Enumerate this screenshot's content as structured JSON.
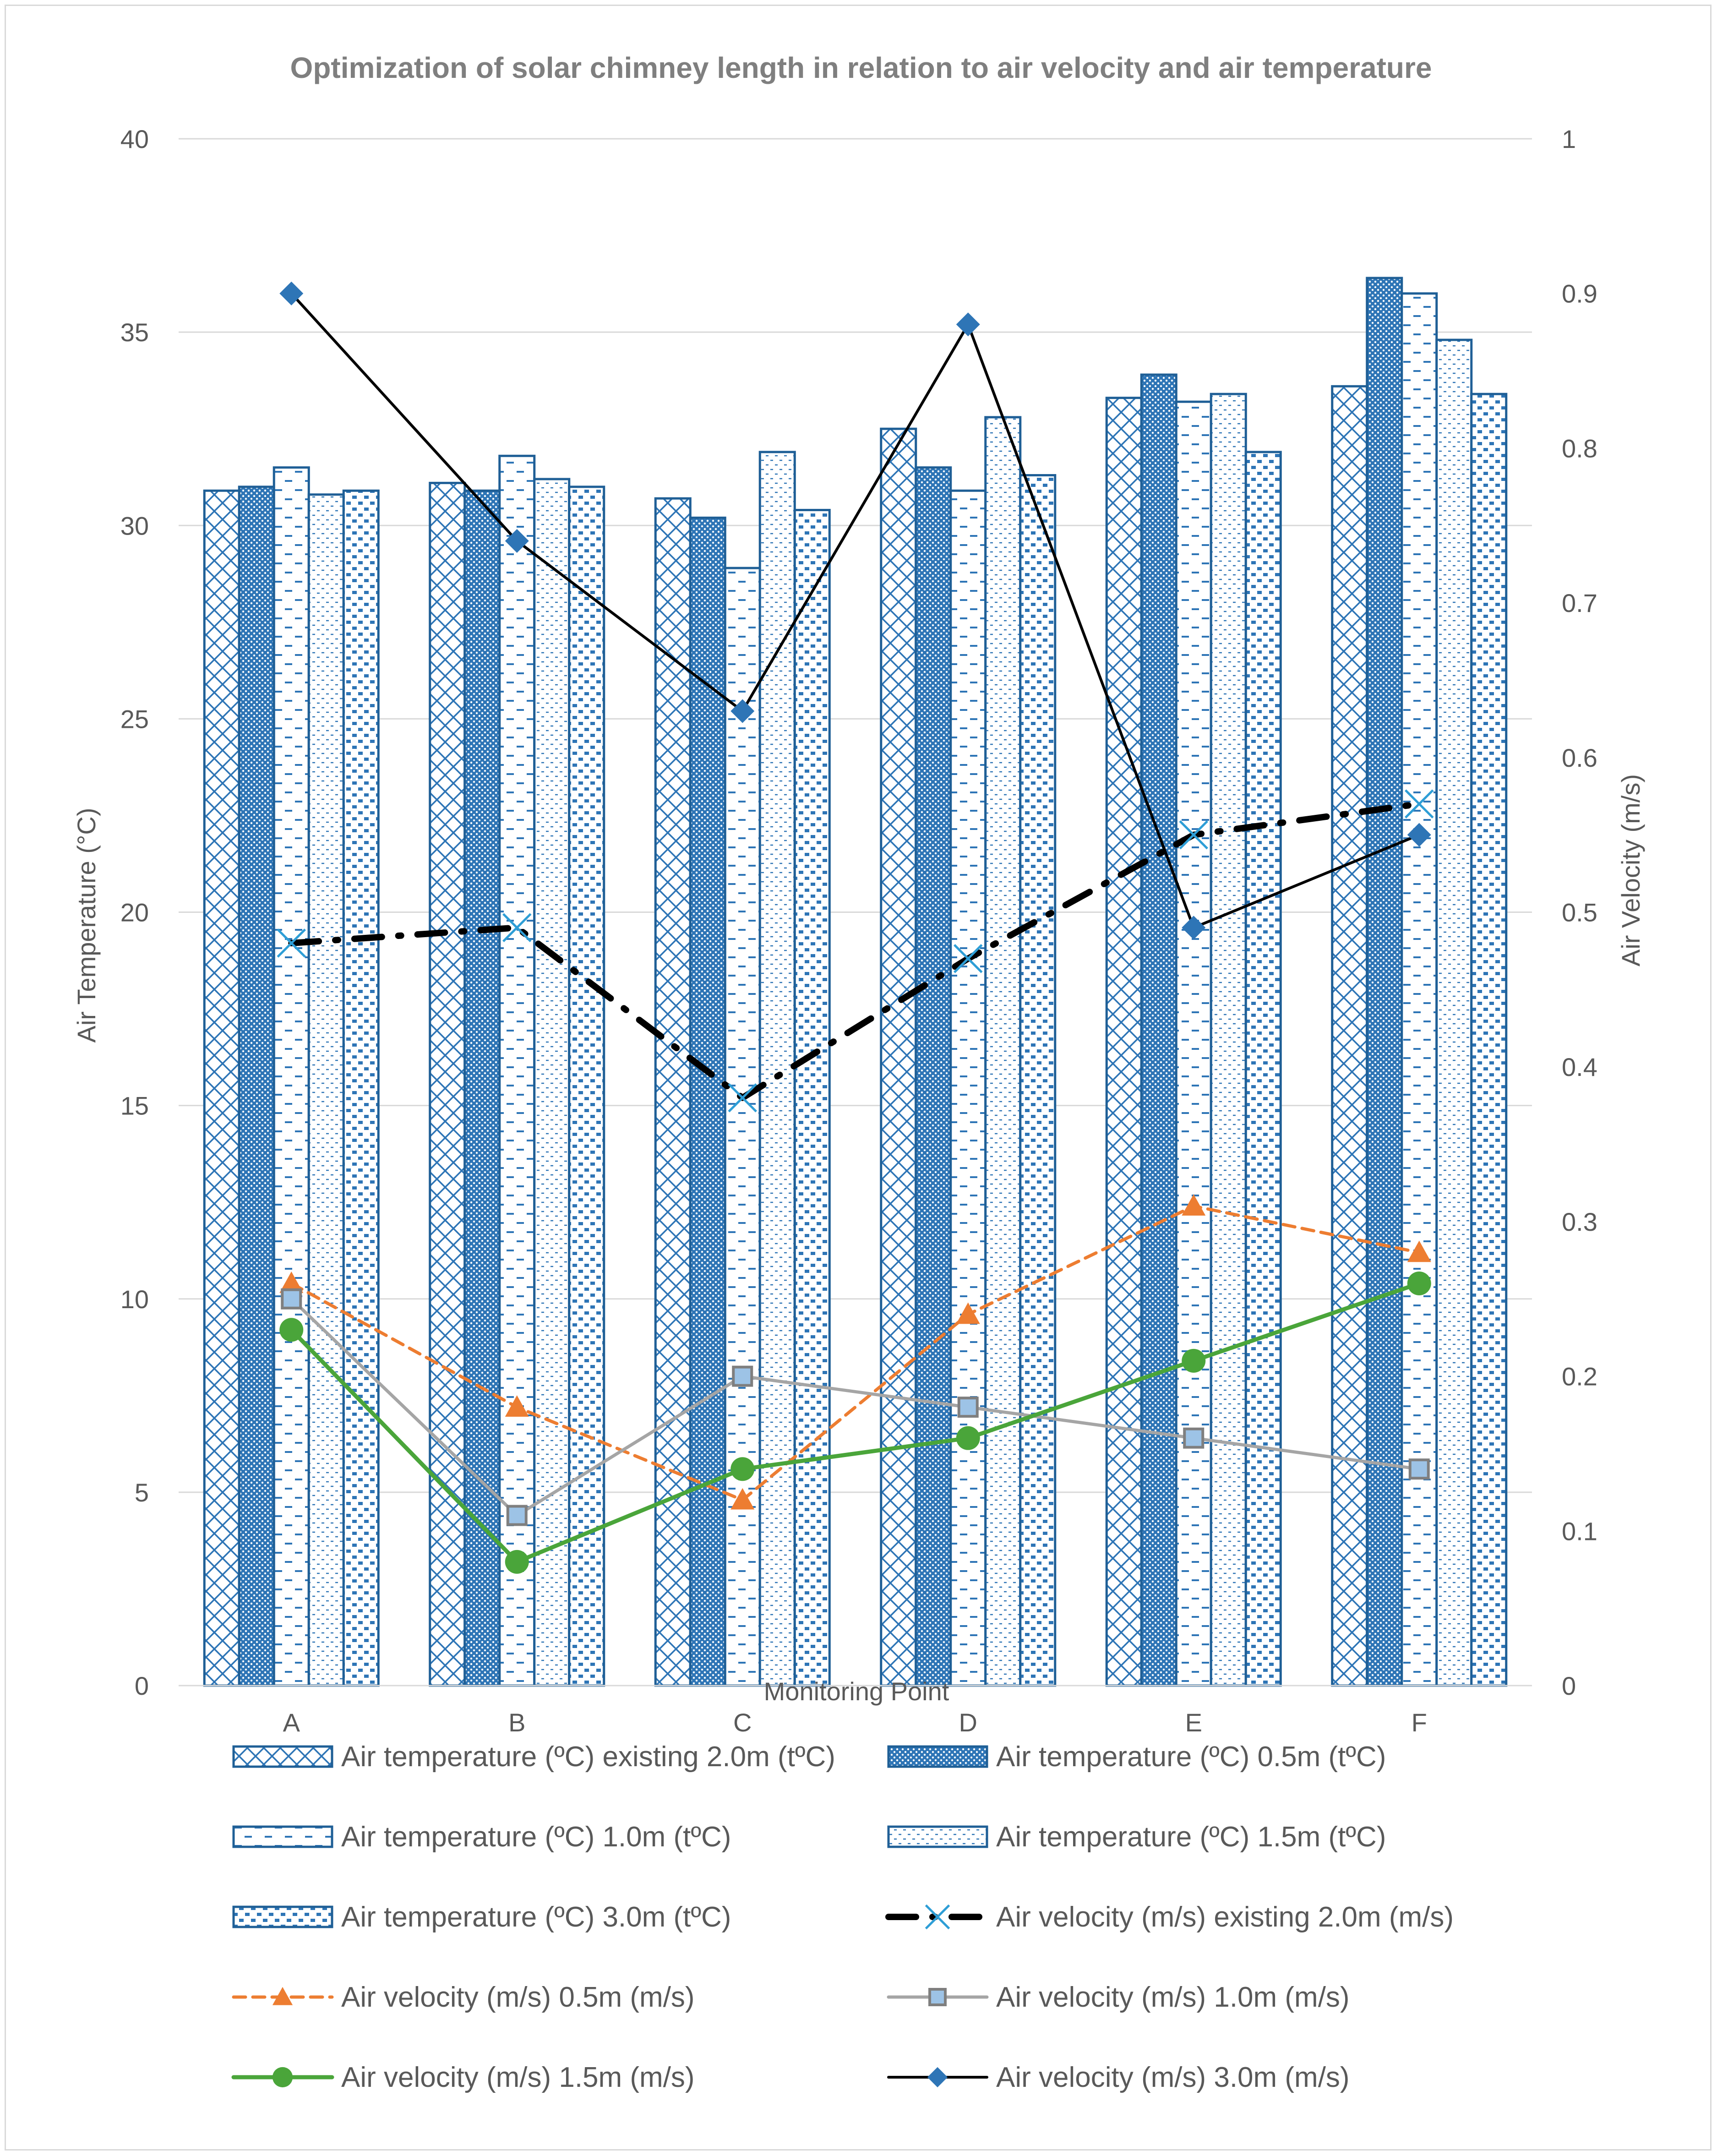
{
  "chart_data": {
    "type": "bar+line",
    "title": "Optimization of solar chimney length in relation to air velocity and air temperature",
    "xlabel": "Monitoring Point",
    "ylabel": "Air Temperature (°C)",
    "y2label": "Air Velocity (m/s)",
    "categories": [
      "A",
      "B",
      "C",
      "D",
      "E",
      "F"
    ],
    "ylim": [
      0,
      40
    ],
    "y2lim": [
      0,
      1
    ],
    "yticks": [
      "0",
      "5",
      "10",
      "15",
      "20",
      "25",
      "30",
      "35",
      "40"
    ],
    "y2ticks": [
      "0",
      "0.1",
      "0.2",
      "0.3",
      "0.4",
      "0.5",
      "0.6",
      "0.7",
      "0.8",
      "0.9",
      "1"
    ],
    "grid": true,
    "legend_position": "bottom",
    "bar_series": [
      {
        "name": "Air temperature (ºC) existing 2.0m (tºC)",
        "pattern": "diagcross",
        "values": [
          30.9,
          31.1,
          30.7,
          32.5,
          33.3,
          33.6
        ]
      },
      {
        "name": "Air temperature (ºC) 0.5m (tºC)",
        "pattern": "dense",
        "values": [
          31.0,
          30.9,
          30.2,
          31.5,
          33.9,
          36.4
        ]
      },
      {
        "name": "Air temperature (ºC) 1.0m  (tºC)",
        "pattern": "dashes",
        "values": [
          31.5,
          31.8,
          28.9,
          30.9,
          33.2,
          36.0
        ]
      },
      {
        "name": "Air temperature (ºC) 1.5m  (tºC)",
        "pattern": "dots",
        "values": [
          30.8,
          31.2,
          31.9,
          32.8,
          33.4,
          34.8
        ]
      },
      {
        "name": "Air temperature (ºC) 3.0m (tºC)",
        "pattern": "bricks",
        "values": [
          30.9,
          31.0,
          30.4,
          31.3,
          31.9,
          33.4
        ]
      }
    ],
    "line_series": [
      {
        "name": "Air velocity (m/s) existing 2.0m (m/s)",
        "color": "#000000",
        "marker": "x",
        "values": [
          0.48,
          0.49,
          0.38,
          0.47,
          0.55,
          0.57
        ]
      },
      {
        "name": "Air velocity (m/s) 0.5m (m/s)",
        "color": "#ed7d31",
        "marker": "triangle",
        "values": [
          0.26,
          0.18,
          0.12,
          0.24,
          0.31,
          0.28
        ]
      },
      {
        "name": "Air velocity (m/s) 1.0m (m/s)",
        "color": "#a5a5a5",
        "marker": "square",
        "values": [
          0.25,
          0.11,
          0.2,
          0.18,
          0.16,
          0.14
        ]
      },
      {
        "name": "Air velocity (m/s) 1.5m (m/s)",
        "color": "#4aa53a",
        "marker": "circle",
        "values": [
          0.23,
          0.08,
          0.14,
          0.16,
          0.21,
          0.26
        ]
      },
      {
        "name": "Air velocity (m/s) 3.0m (m/s)",
        "color": "#000000",
        "marker": "diamond",
        "values": [
          0.9,
          0.74,
          0.63,
          0.88,
          0.49,
          0.55
        ]
      }
    ],
    "legend_order": [
      "Air temperature (ºC) existing 2.0m (tºC)",
      "Air temperature (ºC) 0.5m (tºC)",
      "Air temperature (ºC) 1.0m  (tºC)",
      "Air temperature (ºC) 1.5m  (tºC)",
      "Air temperature (ºC) 3.0m (tºC)",
      "Air velocity (m/s) existing 2.0m (m/s)",
      "Air velocity (m/s) 0.5m (m/s)",
      "Air velocity (m/s) 1.0m (m/s)",
      "Air velocity (m/s) 1.5m (m/s)",
      "Air velocity (m/s) 3.0m (m/s)"
    ]
  }
}
